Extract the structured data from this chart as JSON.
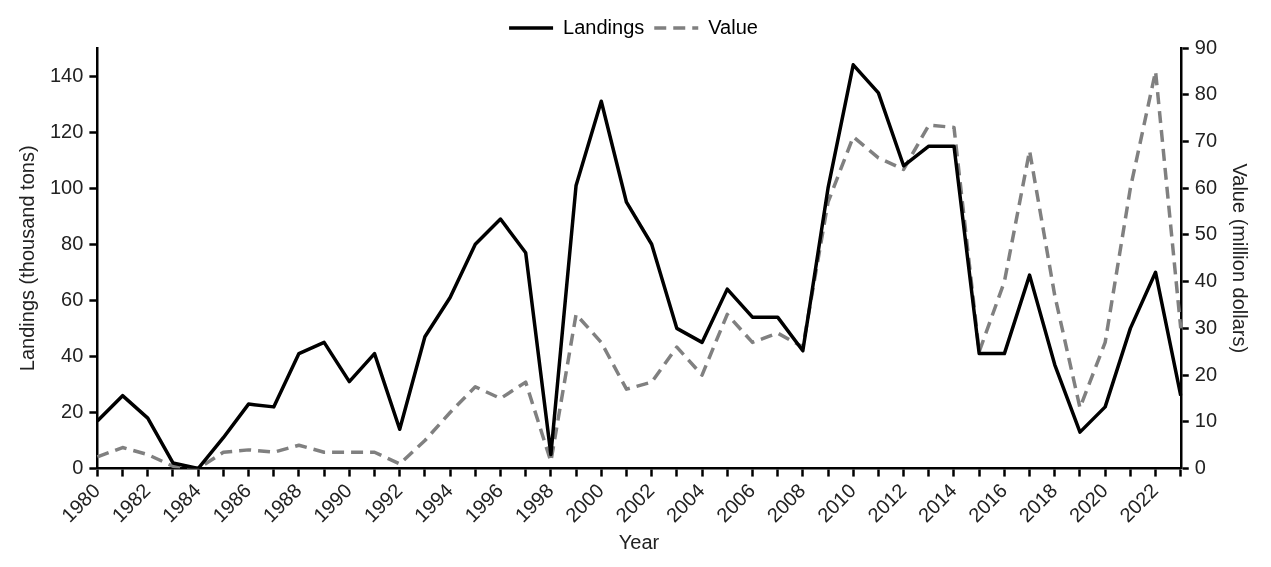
{
  "chart_data": {
    "type": "line",
    "xlabel": "Year",
    "ylabel": "Landings (thousand tons)",
    "y2label": "Value (million dollars)",
    "categories": [
      "1980",
      null,
      "1982",
      null,
      "1984",
      null,
      "1986",
      null,
      "1988",
      null,
      "1990",
      null,
      "1992",
      null,
      "1994",
      null,
      "1996",
      null,
      "1998",
      null,
      "2000",
      null,
      "2002",
      null,
      "2004",
      null,
      "2006",
      null,
      "2008",
      null,
      "2010",
      null,
      "2012",
      null,
      "2014",
      null,
      "2016",
      null,
      "2018",
      null,
      "2020",
      null,
      "2022",
      null
    ],
    "series": [
      {
        "name": "Landings",
        "color": "#000000",
        "line_style": "solid",
        "values": [
          17,
          26,
          18,
          2,
          0,
          11,
          23,
          22,
          41,
          45,
          31,
          41,
          14,
          47,
          61,
          80,
          89,
          77,
          5,
          101,
          131,
          95,
          80,
          50,
          45,
          64,
          54,
          54,
          42,
          100,
          144,
          134,
          108,
          115,
          115,
          41,
          41,
          69,
          37,
          13,
          22,
          50,
          70,
          26
        ]
      },
      {
        "name": "Value",
        "color": "#808080",
        "line_style": "dashed",
        "axis": "y2",
        "values": [
          2.5,
          4.5,
          3,
          0.5,
          0,
          3.5,
          4,
          3.5,
          5,
          3.5,
          3.5,
          3.5,
          1,
          6,
          12,
          17.5,
          15,
          18.5,
          1.5,
          33,
          27,
          17,
          18.5,
          26,
          20,
          33,
          27,
          29,
          26,
          57,
          71,
          66.5,
          64,
          73.5,
          73,
          25,
          40,
          68,
          37,
          13,
          27,
          60,
          85,
          30
        ]
      }
    ],
    "ylim": [
      0,
      150
    ],
    "yticks": [
      0,
      20,
      40,
      60,
      80,
      100,
      120,
      140
    ],
    "y2lim": [
      0,
      90
    ],
    "y2ticks": [
      0,
      10,
      20,
      30,
      40,
      50,
      60,
      70,
      80,
      90
    ],
    "grid": false,
    "legend": "top",
    "marker": "none"
  }
}
